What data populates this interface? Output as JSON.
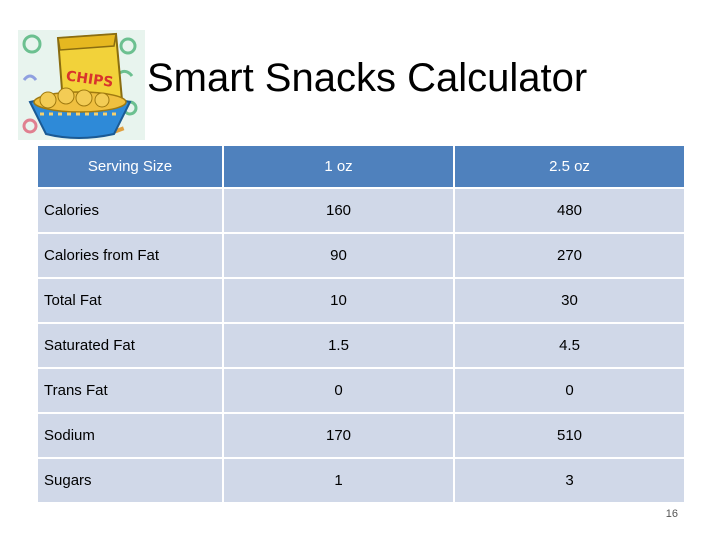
{
  "title": "Smart Snacks Calculator",
  "clipart": {
    "icon": "chips-bag-icon",
    "bag_text": "CHIPS"
  },
  "table": {
    "headers": [
      "Serving Size",
      "1 oz",
      "2.5 oz"
    ],
    "rows": [
      [
        "Calories",
        "160",
        "480"
      ],
      [
        "Calories from Fat",
        "90",
        "270"
      ],
      [
        "Total Fat",
        "10",
        "30"
      ],
      [
        "Saturated Fat",
        "1.5",
        "4.5"
      ],
      [
        "Trans Fat",
        "0",
        "0"
      ],
      [
        "Sodium",
        "170",
        "510"
      ],
      [
        "Sugars",
        "1",
        "3"
      ]
    ]
  },
  "page_number": "16",
  "colors": {
    "header_bg": "#4f81bd",
    "row_bg": "#d0d8e8"
  }
}
